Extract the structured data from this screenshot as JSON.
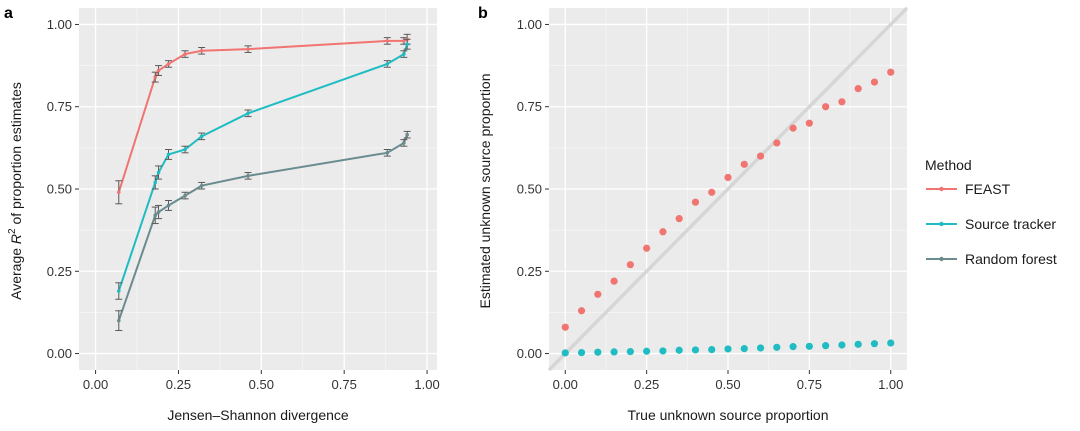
{
  "chart_data": [
    {
      "panel": "a",
      "type": "line",
      "title": "",
      "xlabel": "Jensen–Shannon divergence",
      "ylabel_prefix": "Average ",
      "ylabel_var": "R",
      "ylabel_sup": "2",
      "ylabel_suffix": " of proportion estimates",
      "xlim": [
        -0.05,
        1.03
      ],
      "ylim": [
        -0.05,
        1.05
      ],
      "xticks": [
        0.0,
        0.25,
        0.5,
        0.75,
        1.0
      ],
      "xtick_labels": [
        "0.00",
        "0.25",
        "0.50",
        "0.75",
        "1.00"
      ],
      "yticks": [
        0.0,
        0.25,
        0.5,
        0.75,
        1.0
      ],
      "ytick_labels": [
        "0.00",
        "0.25",
        "0.50",
        "0.75",
        "1.00"
      ],
      "grid": true,
      "series": [
        {
          "name": "FEAST",
          "color": "#f07470",
          "x": [
            0.07,
            0.18,
            0.19,
            0.22,
            0.27,
            0.32,
            0.46,
            0.88,
            0.93,
            0.94
          ],
          "y": [
            0.49,
            0.84,
            0.86,
            0.88,
            0.91,
            0.92,
            0.925,
            0.95,
            0.95,
            0.955
          ],
          "err": [
            0.035,
            0.015,
            0.015,
            0.01,
            0.01,
            0.01,
            0.01,
            0.01,
            0.01,
            0.015
          ]
        },
        {
          "name": "Source tracker",
          "color": "#1fbcc3",
          "x": [
            0.07,
            0.18,
            0.19,
            0.22,
            0.27,
            0.32,
            0.46,
            0.88,
            0.93,
            0.94
          ],
          "y": [
            0.19,
            0.52,
            0.55,
            0.605,
            0.62,
            0.66,
            0.73,
            0.88,
            0.91,
            0.94
          ],
          "err": [
            0.025,
            0.02,
            0.02,
            0.015,
            0.01,
            0.01,
            0.01,
            0.01,
            0.01,
            0.015
          ]
        },
        {
          "name": "Random forest",
          "color": "#6a8c8f",
          "x": [
            0.07,
            0.18,
            0.19,
            0.22,
            0.27,
            0.32,
            0.46,
            0.88,
            0.93,
            0.94
          ],
          "y": [
            0.1,
            0.42,
            0.43,
            0.45,
            0.48,
            0.51,
            0.54,
            0.61,
            0.64,
            0.665
          ],
          "err": [
            0.03,
            0.025,
            0.02,
            0.015,
            0.01,
            0.01,
            0.01,
            0.01,
            0.01,
            0.01
          ]
        }
      ]
    },
    {
      "panel": "b",
      "type": "scatter",
      "title": "",
      "xlabel": "True unknown source proportion",
      "ylabel": "Estimated unknown source proportion",
      "xlim": [
        -0.05,
        1.05
      ],
      "ylim": [
        -0.05,
        1.05
      ],
      "xticks": [
        0.0,
        0.25,
        0.5,
        0.75,
        1.0
      ],
      "xtick_labels": [
        "0.00",
        "0.25",
        "0.50",
        "0.75",
        "1.00"
      ],
      "yticks": [
        0.0,
        0.25,
        0.5,
        0.75,
        1.0
      ],
      "ytick_labels": [
        "0.00",
        "0.25",
        "0.50",
        "0.75",
        "1.00"
      ],
      "grid": true,
      "reference_line": "y = x",
      "series": [
        {
          "name": "FEAST",
          "color": "#f07470",
          "x": [
            0.0,
            0.05,
            0.1,
            0.15,
            0.2,
            0.25,
            0.3,
            0.35,
            0.4,
            0.45,
            0.5,
            0.55,
            0.6,
            0.65,
            0.7,
            0.75,
            0.8,
            0.85,
            0.9,
            0.95,
            1.0
          ],
          "y": [
            0.08,
            0.13,
            0.18,
            0.22,
            0.27,
            0.32,
            0.37,
            0.41,
            0.46,
            0.49,
            0.535,
            0.575,
            0.6,
            0.64,
            0.685,
            0.7,
            0.75,
            0.765,
            0.805,
            0.825,
            0.855
          ]
        },
        {
          "name": "Source tracker",
          "color": "#1fbcc3",
          "x": [
            0.0,
            0.05,
            0.1,
            0.15,
            0.2,
            0.25,
            0.3,
            0.35,
            0.4,
            0.45,
            0.5,
            0.55,
            0.6,
            0.65,
            0.7,
            0.75,
            0.8,
            0.85,
            0.9,
            0.95,
            1.0
          ],
          "y": [
            0.002,
            0.003,
            0.004,
            0.005,
            0.006,
            0.007,
            0.008,
            0.01,
            0.011,
            0.012,
            0.014,
            0.015,
            0.017,
            0.019,
            0.021,
            0.022,
            0.024,
            0.026,
            0.028,
            0.03,
            0.032
          ]
        }
      ]
    }
  ],
  "panel_labels": {
    "a": "a",
    "b": "b"
  },
  "legend": {
    "title": "Method",
    "entries": [
      {
        "label": "FEAST",
        "color": "#f07470"
      },
      {
        "label": "Source tracker",
        "color": "#1fbcc3"
      },
      {
        "label": "Random forest",
        "color": "#6a8c8f"
      }
    ]
  }
}
